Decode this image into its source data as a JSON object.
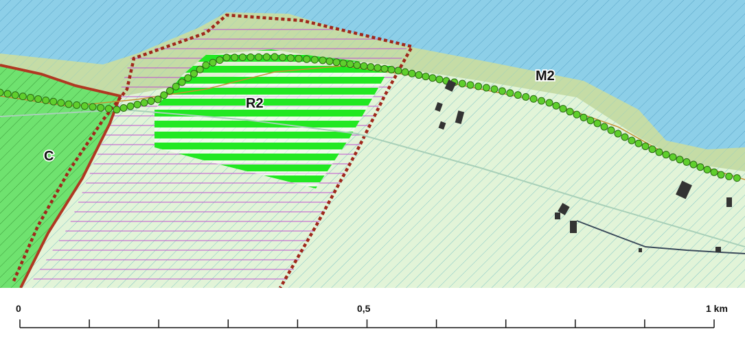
{
  "map": {
    "zones": [
      {
        "label": "C"
      },
      {
        "label": "R2"
      },
      {
        "label": "M2"
      }
    ],
    "colors": {
      "sea": "#8dcfe8",
      "coastal_strip": "#c5dca6",
      "land_light": "#e2f4d8",
      "zone_c_green": "#6fe26f",
      "zone_r2_green": "#22e822",
      "boundary_dashed": "#a0281c",
      "boundary_solid": "#b03822",
      "trail_dots": "#5fcf2c",
      "hatch_magenta": "#c050d0",
      "buildings": "#333333"
    }
  },
  "scale_bar": {
    "labels": [
      "0",
      "0,5",
      "1 km"
    ],
    "tick_count": 11
  }
}
